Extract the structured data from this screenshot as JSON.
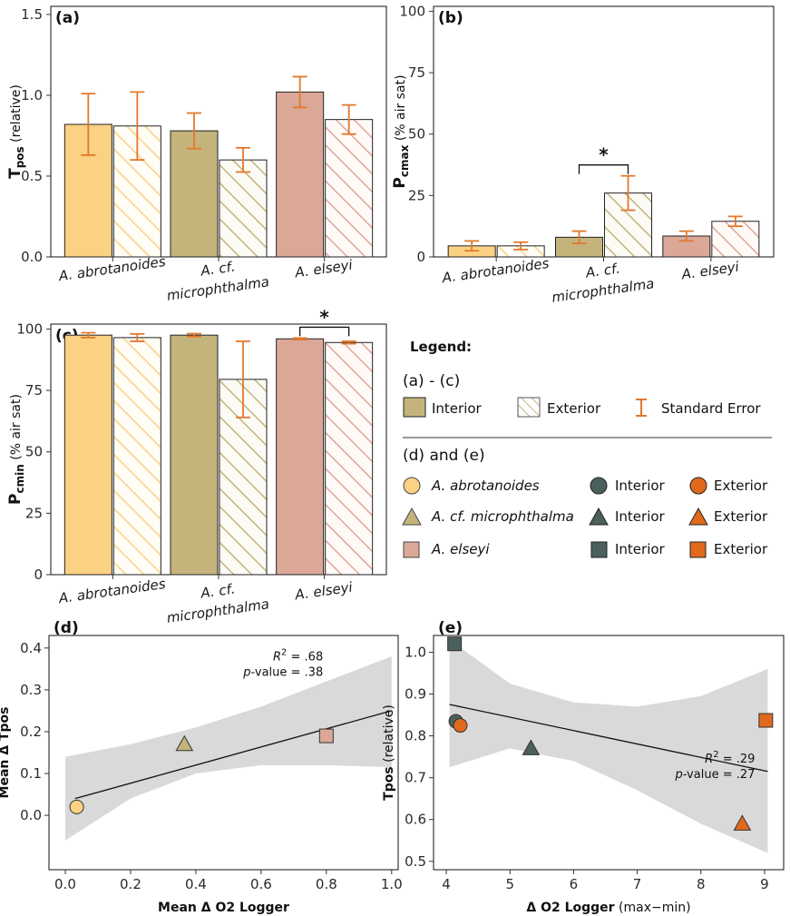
{
  "colors": {
    "abrotanoides": "#fbd183",
    "microphthalma": "#c4b47c",
    "elseyi": "#dba898",
    "interior_point": "#4b5f5c",
    "exterior_point": "#e0691d",
    "error_bar": "#e2782d",
    "ribbon": "#d9d9d9"
  },
  "chart_data": [
    {
      "id": "a",
      "panel_label": "(a)",
      "type": "bar",
      "ylabel_main": "T",
      "ylabel_sub": "pos",
      "ylabel_unit": " (relative)",
      "yticks": [
        0.0,
        0.5,
        1.0,
        1.5
      ],
      "ytick_labels": [
        "0.0",
        "0.5",
        "1.0",
        "1.5"
      ],
      "ylim": [
        0,
        1.55
      ],
      "categories": [
        "A. abrotanoides",
        "A. cf. microphthalma",
        "A. elseyi"
      ],
      "category_label_lines": [
        [
          "A. abrotanoides"
        ],
        [
          "A. cf.",
          "microphthalma"
        ],
        [
          "A. elseyi"
        ]
      ],
      "series": [
        {
          "name": "Interior",
          "values": [
            0.82,
            0.78,
            1.02
          ],
          "errors": [
            0.19,
            0.11,
            0.095
          ]
        },
        {
          "name": "Exterior",
          "values": [
            0.81,
            0.6,
            0.85
          ],
          "errors": [
            0.21,
            0.075,
            0.09
          ]
        }
      ],
      "significance": []
    },
    {
      "id": "b",
      "panel_label": "(b)",
      "type": "bar",
      "ylabel_main": "P",
      "ylabel_sub": "cmax",
      "ylabel_unit": " (% air sat)",
      "yticks": [
        0,
        25,
        50,
        75,
        100
      ],
      "ytick_labels": [
        "0",
        "25",
        "50",
        "75",
        "100"
      ],
      "ylim": [
        0,
        102
      ],
      "categories": [
        "A. abrotanoides",
        "A. cf. microphthalma",
        "A. elseyi"
      ],
      "category_label_lines": [
        [
          "A. abrotanoides"
        ],
        [
          "A. cf.",
          "microphthalma"
        ],
        [
          "A. elseyi"
        ]
      ],
      "series": [
        {
          "name": "Interior",
          "values": [
            4.5,
            8.0,
            8.5
          ],
          "errors": [
            2.0,
            2.5,
            2.0
          ]
        },
        {
          "name": "Exterior",
          "values": [
            4.5,
            26.0,
            14.5
          ],
          "errors": [
            1.5,
            7.0,
            2.0
          ]
        }
      ],
      "significance": [
        {
          "category": 1,
          "symbol": "*"
        }
      ]
    },
    {
      "id": "c",
      "panel_label": "(c)",
      "type": "bar",
      "ylabel_main": "P",
      "ylabel_sub": "cmin",
      "ylabel_unit": " (% air sat)",
      "yticks": [
        0,
        25,
        50,
        75,
        100
      ],
      "ytick_labels": [
        "0",
        "25",
        "50",
        "75",
        "100"
      ],
      "ylim": [
        0,
        102
      ],
      "categories": [
        "A. abrotanoides",
        "A. cf. microphthalma",
        "A. elseyi"
      ],
      "category_label_lines": [
        [
          "A. abrotanoides"
        ],
        [
          "A. cf.",
          "microphthalma"
        ],
        [
          "A. elseyi"
        ]
      ],
      "series": [
        {
          "name": "Interior",
          "values": [
            97.5,
            97.5,
            96.0
          ],
          "errors": [
            1.0,
            0.6,
            0.3
          ]
        },
        {
          "name": "Exterior",
          "values": [
            96.5,
            79.5,
            94.5
          ],
          "errors": [
            1.5,
            15.5,
            0.5
          ]
        }
      ],
      "significance": [
        {
          "category": 2,
          "symbol": "*"
        }
      ]
    },
    {
      "id": "d",
      "panel_label": "(d)",
      "type": "scatter",
      "xlabel": "Mean Δ O2 Logger",
      "ylabel": "Mean Δ Tpos",
      "xlim": [
        -0.05,
        1.02
      ],
      "ylim": [
        -0.13,
        0.43
      ],
      "xticks": [
        0.0,
        0.2,
        0.4,
        0.6,
        0.8,
        1.0
      ],
      "xtick_labels": [
        "0.0",
        "0.2",
        "0.4",
        "0.6",
        "0.8",
        "1.0"
      ],
      "yticks": [
        0.0,
        0.1,
        0.2,
        0.3,
        0.4
      ],
      "ytick_labels": [
        "0.0",
        "0.1",
        "0.2",
        "0.3",
        "0.4"
      ],
      "points": [
        {
          "x": 0.035,
          "y": 0.02,
          "species": "A. abrotanoides",
          "shape": "circle",
          "color": "#fbd183"
        },
        {
          "x": 0.365,
          "y": 0.17,
          "species": "A. cf. microphthalma",
          "shape": "triangle",
          "color": "#c4b47c"
        },
        {
          "x": 0.8,
          "y": 0.19,
          "species": "A. elseyi",
          "shape": "square",
          "color": "#dba898"
        }
      ],
      "fit": {
        "x": [
          0.03,
          1.0
        ],
        "y": [
          0.04,
          0.25
        ]
      },
      "ribbon": {
        "x": [
          0.0,
          0.2,
          0.4,
          0.6,
          0.8,
          1.0
        ],
        "upper": [
          0.14,
          0.17,
          0.21,
          0.26,
          0.32,
          0.38
        ],
        "lower": [
          -0.06,
          0.04,
          0.1,
          0.12,
          0.12,
          0.115
        ]
      },
      "annotation": {
        "r2_text": "= .68",
        "p_label": "p",
        "p_text": "-value = .38"
      }
    },
    {
      "id": "e",
      "panel_label": "(e)",
      "type": "scatter",
      "xlabel": "Δ O2 Logger",
      "xlabel_extra": " (max−min)",
      "ylabel": "Tpos",
      "ylabel_unit": " (relative)",
      "xlim": [
        3.8,
        9.3
      ],
      "ylim": [
        0.48,
        1.04
      ],
      "xticks": [
        4,
        5,
        6,
        7,
        8,
        9
      ],
      "xtick_labels": [
        "4",
        "5",
        "6",
        "7",
        "8",
        "9"
      ],
      "yticks": [
        0.5,
        0.6,
        0.7,
        0.8,
        0.9,
        1.0
      ],
      "ytick_labels": [
        "0.5",
        "0.6",
        "0.7",
        "0.8",
        "0.9",
        "1.0"
      ],
      "points": [
        {
          "x": 4.13,
          "y": 1.02,
          "shape": "square",
          "color": "#4b5f5c"
        },
        {
          "x": 4.15,
          "y": 0.835,
          "shape": "circle",
          "color": "#4b5f5c"
        },
        {
          "x": 4.22,
          "y": 0.825,
          "shape": "circle",
          "color": "#e0691d"
        },
        {
          "x": 5.33,
          "y": 0.77,
          "shape": "triangle",
          "color": "#4b5f5c"
        },
        {
          "x": 9.02,
          "y": 0.837,
          "shape": "square",
          "color": "#e0691d"
        },
        {
          "x": 8.65,
          "y": 0.59,
          "shape": "triangle",
          "color": "#e0691d"
        }
      ],
      "fit": {
        "x": [
          4.05,
          9.05
        ],
        "y": [
          0.875,
          0.715
        ]
      },
      "ribbon": {
        "x": [
          4.05,
          5.0,
          6.0,
          7.0,
          8.0,
          9.05
        ],
        "upper": [
          1.03,
          0.925,
          0.88,
          0.87,
          0.895,
          0.96
        ],
        "lower": [
          0.725,
          0.77,
          0.74,
          0.67,
          0.59,
          0.52
        ]
      },
      "annotation": {
        "r2_text": "= .29",
        "p_label": "p",
        "p_text": "-value = .27"
      }
    }
  ],
  "legend": {
    "title": "Legend:",
    "section_bars": "(a) - (c)",
    "interior_label": "Interior",
    "exterior_label": "Exterior",
    "se_label": "Standard Error",
    "section_points": "(d) and (e)",
    "species": [
      "A. abrotanoides",
      "A. cf. microphthalma",
      "A. elseyi"
    ],
    "point_interior_label": "Interior",
    "point_exterior_label": "Exterior"
  },
  "texts": {
    "r2_symbol": "R",
    "r2_superscript": "2"
  }
}
